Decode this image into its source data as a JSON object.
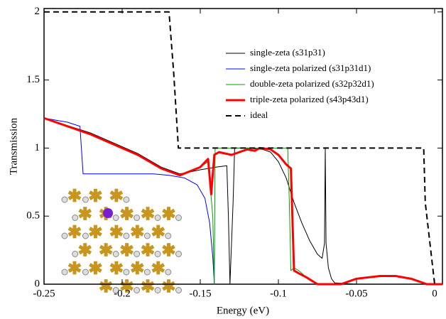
{
  "chart_data": {
    "type": "line",
    "x_label": "Energy (eV)",
    "y_label": "Transmission",
    "xlim": [
      -0.25,
      0.005
    ],
    "ylim": [
      0,
      2.025
    ],
    "xticks": [
      -0.25,
      -0.2,
      -0.15,
      -0.1,
      -0.05,
      0
    ],
    "yticks": [
      0,
      0.5,
      1,
      1.5,
      2
    ],
    "legend": "upper right",
    "series": [
      {
        "name": "single-zeta (s31p31)",
        "color": "#000000",
        "linewidth": 1,
        "linestyle": "solid",
        "x": [
          -0.25,
          -0.22,
          -0.19,
          -0.175,
          -0.163,
          -0.15,
          -0.14,
          -0.133,
          -0.132,
          -0.131,
          -0.129,
          -0.128,
          -0.12,
          -0.11,
          -0.105,
          -0.1,
          -0.095,
          -0.09,
          -0.085,
          -0.08,
          -0.075,
          -0.072,
          -0.0705,
          -0.07,
          -0.0695,
          -0.068,
          -0.066,
          -0.064,
          -0.05,
          0,
          0.005
        ],
        "values": [
          1.22,
          1.11,
          0.96,
          0.86,
          0.81,
          0.84,
          0.86,
          0.87,
          0.5,
          0,
          0.6,
          1.0,
          1.0,
          0.99,
          0.97,
          0.9,
          0.78,
          0.6,
          0.45,
          0.32,
          0.22,
          0.19,
          0.3,
          1.0,
          0.3,
          0.12,
          0.04,
          0.01,
          0,
          0,
          0
        ]
      },
      {
        "name": "single-zeta polarized (s31p31d1)",
        "color": "#0000ff",
        "linewidth": 1,
        "linestyle": "solid",
        "x": [
          -0.25,
          -0.235,
          -0.227,
          -0.225,
          -0.2,
          -0.18,
          -0.17,
          -0.16,
          -0.152,
          -0.147,
          -0.144,
          -0.142,
          -0.141
        ],
        "values": [
          1.22,
          1.19,
          1.16,
          0.81,
          0.81,
          0.81,
          0.8,
          0.78,
          0.73,
          0.63,
          0.45,
          0.2,
          0
        ]
      },
      {
        "name": "double-zeta polarized (s32p32d1)",
        "color": "#00a000",
        "linewidth": 1,
        "linestyle": "solid",
        "x": [
          -0.25,
          -0.22,
          -0.19,
          -0.175,
          -0.163,
          -0.15,
          -0.145,
          -0.142,
          -0.141,
          -0.1405,
          -0.139,
          -0.12,
          -0.1,
          -0.094,
          -0.093,
          -0.092,
          -0.09,
          -0.087,
          -0.082,
          -0.075,
          -0.06,
          -0.05,
          -0.035,
          -0.025,
          -0.015,
          -0.005,
          0.005
        ],
        "values": [
          1.22,
          1.1,
          0.95,
          0.85,
          0.8,
          0.86,
          0.9,
          0.5,
          0,
          1.0,
          1.0,
          1.0,
          1.0,
          1.0,
          0.6,
          0.1,
          0.12,
          0.1,
          0.05,
          0,
          0,
          0.04,
          0.06,
          0.06,
          0.04,
          0,
          0
        ]
      },
      {
        "name": "triple-zeta polarized (s43p43d1)",
        "color": "#ff0000",
        "linewidth": 3,
        "linestyle": "solid",
        "x": [
          -0.25,
          -0.22,
          -0.19,
          -0.175,
          -0.163,
          -0.15,
          -0.145,
          -0.143,
          -0.141,
          -0.138,
          -0.13,
          -0.12,
          -0.115,
          -0.112,
          -0.105,
          -0.1,
          -0.095,
          -0.092,
          -0.09,
          -0.087,
          -0.082,
          -0.075,
          -0.06,
          -0.05,
          -0.035,
          -0.025,
          -0.015,
          -0.005,
          0.005
        ],
        "values": [
          1.22,
          1.1,
          0.95,
          0.85,
          0.8,
          0.86,
          0.92,
          0.66,
          0.95,
          0.97,
          0.95,
          0.99,
          0.98,
          1.0,
          0.99,
          0.95,
          0.88,
          0.85,
          0.1,
          0.08,
          0.05,
          0,
          0,
          0.04,
          0.06,
          0.06,
          0.04,
          0,
          0
        ]
      },
      {
        "name": "ideal",
        "color": "#000000",
        "linewidth": 2,
        "linestyle": "dashed",
        "x": [
          -0.25,
          -0.17,
          -0.169,
          -0.167,
          -0.164,
          -0.007,
          -0.006,
          -0.003,
          0
        ],
        "values": [
          2,
          2,
          1.85,
          1.55,
          1,
          1,
          0.6,
          0.3,
          0
        ]
      }
    ]
  }
}
